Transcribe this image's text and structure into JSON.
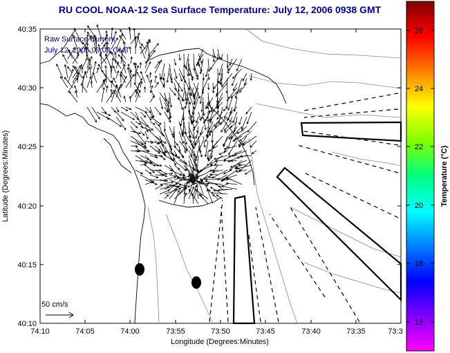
{
  "title": "RU COOL  NOAA-12  Sea Surface Temperature:  July 12, 2006 0938 GMT",
  "overlay": {
    "line1": "Raw Surface Current",
    "line2": "July 12, 2006 09:00 GMT"
  },
  "scale": {
    "label": "50 cm/s"
  },
  "x_axis": {
    "label": "Longitude (Degrees:Minutes)",
    "ticks": [
      "74:10",
      "74:05",
      "74:00",
      "73:55",
      "73:50",
      "73:45",
      "73:40",
      "73:35",
      "73:3"
    ]
  },
  "y_axis": {
    "label": "Latitude (Degrees:Minutes)",
    "ticks": [
      "40:35",
      "40:30",
      "40:25",
      "40:20",
      "40:15",
      "40:10"
    ]
  },
  "colorbar": {
    "label": "Temperature (°C)",
    "ticks": [
      "26",
      "24",
      "22",
      "20",
      "18",
      "16"
    ],
    "colors": [
      "#800000",
      "#ff0000",
      "#ff8000",
      "#ffff00",
      "#80ff00",
      "#00ff80",
      "#00ffff",
      "#0080ff",
      "#0000ff",
      "#8000ff",
      "#ff00ff"
    ]
  },
  "colors": {
    "title": "#00008b",
    "map_line": "#000000",
    "contour": "#808080"
  }
}
